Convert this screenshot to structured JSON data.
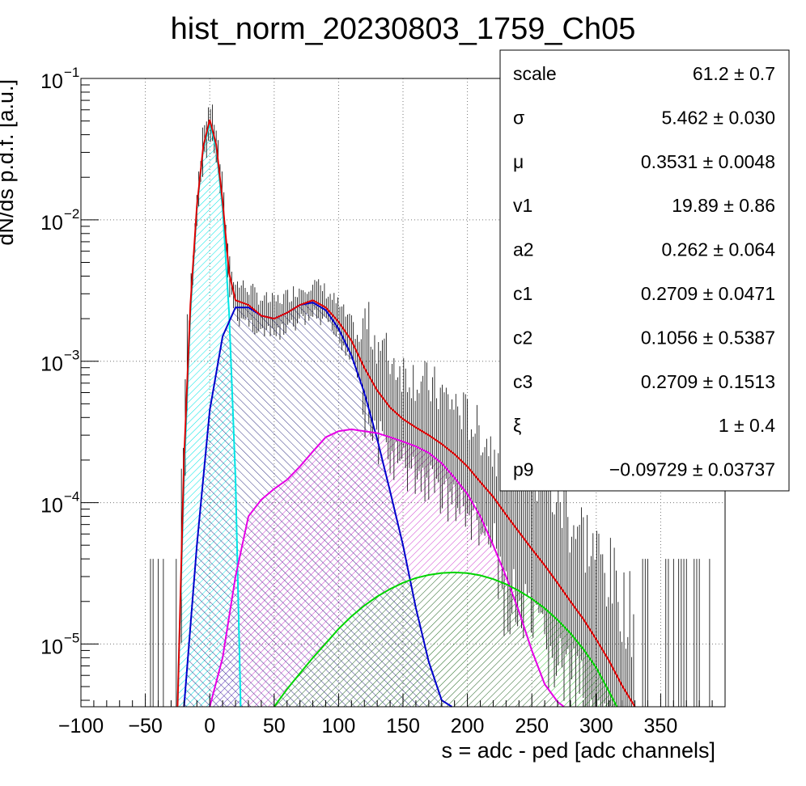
{
  "chart_data": {
    "type": "line",
    "title": "hist_norm_20230803_1759_Ch05",
    "xlabel": "s = adc - ped [adc channels]",
    "ylabel": "dN/ds p.d.f. [a.u.]",
    "xlim": [
      -100,
      400
    ],
    "ylim": [
      3.6e-06,
      0.1
    ],
    "yscale": "log",
    "grid": true,
    "xticks": [
      -100,
      -50,
      0,
      50,
      100,
      150,
      200,
      250,
      300,
      350
    ],
    "xtick_labels": [
      "−100",
      "−50",
      "0",
      "50",
      "100",
      "150",
      "200",
      "250",
      "300",
      "350"
    ],
    "yticks": [
      1e-05,
      0.0001,
      0.001,
      0.01,
      0.1
    ],
    "ytick_labels": [
      {
        "base": "10",
        "exp": "−5"
      },
      {
        "base": "10",
        "exp": "−4"
      },
      {
        "base": "10",
        "exp": "−3"
      },
      {
        "base": "10",
        "exp": "−2"
      },
      {
        "base": "10",
        "exp": "−1"
      }
    ],
    "series": [
      {
        "color": "#00e5e5",
        "fill": "hatched",
        "x": [
          -25,
          -20,
          -15,
          -10,
          -5,
          0,
          5,
          10,
          15,
          20,
          24
        ],
        "values": [
          3.6e-06,
          0.00015,
          0.0022,
          0.012,
          0.032,
          0.048,
          0.032,
          0.012,
          0.0022,
          0.00015,
          3.6e-06
        ]
      },
      {
        "color": "#0000cc",
        "fill": "hatched",
        "x": [
          -20,
          -10,
          0,
          10,
          20,
          30,
          40,
          50,
          60,
          70,
          80,
          90,
          100,
          110,
          120,
          130,
          140,
          150,
          160,
          170,
          180,
          188
        ],
        "values": [
          3.6e-06,
          5e-05,
          0.00045,
          0.0015,
          0.0024,
          0.0024,
          0.0021,
          0.002,
          0.0022,
          0.0025,
          0.0026,
          0.0023,
          0.0017,
          0.0011,
          0.0006,
          0.00028,
          0.00012,
          5e-05,
          1.8e-05,
          7.5e-06,
          4e-06,
          3.6e-06
        ]
      },
      {
        "color": "#e600e6",
        "fill": "hatched",
        "x": [
          0,
          10,
          20,
          30,
          40,
          50,
          60,
          70,
          80,
          90,
          100,
          110,
          120,
          130,
          140,
          150,
          160,
          170,
          180,
          190,
          200,
          210,
          220,
          230,
          240,
          250,
          260,
          270,
          275
        ],
        "values": [
          3.6e-06,
          8e-06,
          3e-05,
          8e-05,
          0.000105,
          0.000125,
          0.000145,
          0.00018,
          0.00023,
          0.00029,
          0.00032,
          0.00033,
          0.00032,
          0.00031,
          0.00029,
          0.00027,
          0.00025,
          0.000225,
          0.00019,
          0.00015,
          0.000115,
          8e-05,
          5e-05,
          3e-05,
          1.7e-05,
          9e-06,
          5.2e-06,
          3.9e-06,
          3.6e-06
        ]
      },
      {
        "color": "#00d400",
        "fill": "hatched",
        "x": [
          50,
          60,
          70,
          80,
          90,
          100,
          110,
          120,
          130,
          140,
          150,
          160,
          170,
          180,
          190,
          200,
          210,
          220,
          230,
          240,
          250,
          260,
          270,
          280,
          290,
          300,
          310,
          316
        ],
        "values": [
          3.6e-06,
          4.8e-06,
          6.2e-06,
          8e-06,
          1.01e-05,
          1.28e-05,
          1.57e-05,
          1.87e-05,
          2.17e-05,
          2.45e-05,
          2.71e-05,
          2.93e-05,
          3.08e-05,
          3.18e-05,
          3.21e-05,
          3.17e-05,
          3.06e-05,
          2.88e-05,
          2.65e-05,
          2.38e-05,
          2.09e-05,
          1.79e-05,
          1.48e-05,
          1.19e-05,
          9.2e-06,
          6.8e-06,
          4.6e-06,
          3.6e-06
        ]
      },
      {
        "color": "#e00000",
        "fill": "none",
        "x": [
          -25,
          -20,
          -15,
          -10,
          -5,
          0,
          5,
          10,
          15,
          20,
          30,
          40,
          50,
          60,
          70,
          80,
          90,
          100,
          110,
          120,
          130,
          140,
          150,
          160,
          170,
          180,
          190,
          200,
          210,
          220,
          230,
          240,
          250,
          260,
          270,
          280,
          290,
          300,
          310,
          320,
          330
        ],
        "values": [
          3.6e-06,
          0.0002,
          0.0025,
          0.0125,
          0.033,
          0.051,
          0.034,
          0.0135,
          0.0042,
          0.0027,
          0.0025,
          0.0021,
          0.002,
          0.0022,
          0.0025,
          0.0027,
          0.0024,
          0.0019,
          0.0014,
          0.0009,
          0.00062,
          0.00047,
          0.00039,
          0.00034,
          0.0003,
          0.00026,
          0.00022,
          0.00018,
          0.00014,
          0.00011,
          8.2e-05,
          6.2e-05,
          4.7e-05,
          3.6e-05,
          2.7e-05,
          2e-05,
          1.5e-05,
          1.08e-05,
          7.6e-06,
          5.1e-06,
          3.6e-06
        ]
      }
    ],
    "stats_box": {
      "position": "top-right",
      "rows": [
        {
          "name": "scale",
          "value": "61.2 ± 0.7"
        },
        {
          "name": "σ",
          "value": "5.462 ± 0.030"
        },
        {
          "name": "μ",
          "value": "0.3531 ± 0.0048"
        },
        {
          "name": "v1",
          "value": "19.89 ± 0.86"
        },
        {
          "name": "a2",
          "value": "0.262 ± 0.064"
        },
        {
          "name": "c1",
          "value": "0.2709 ± 0.0471"
        },
        {
          "name": "c2",
          "value": "0.1056 ± 0.5387"
        },
        {
          "name": "c3",
          "value": "0.2709 ± 0.1513"
        },
        {
          "name": "ξ",
          "value": "1 ± 0.4"
        },
        {
          "name": "p9",
          "value": "−0.09729 ± 0.03737"
        }
      ]
    }
  }
}
